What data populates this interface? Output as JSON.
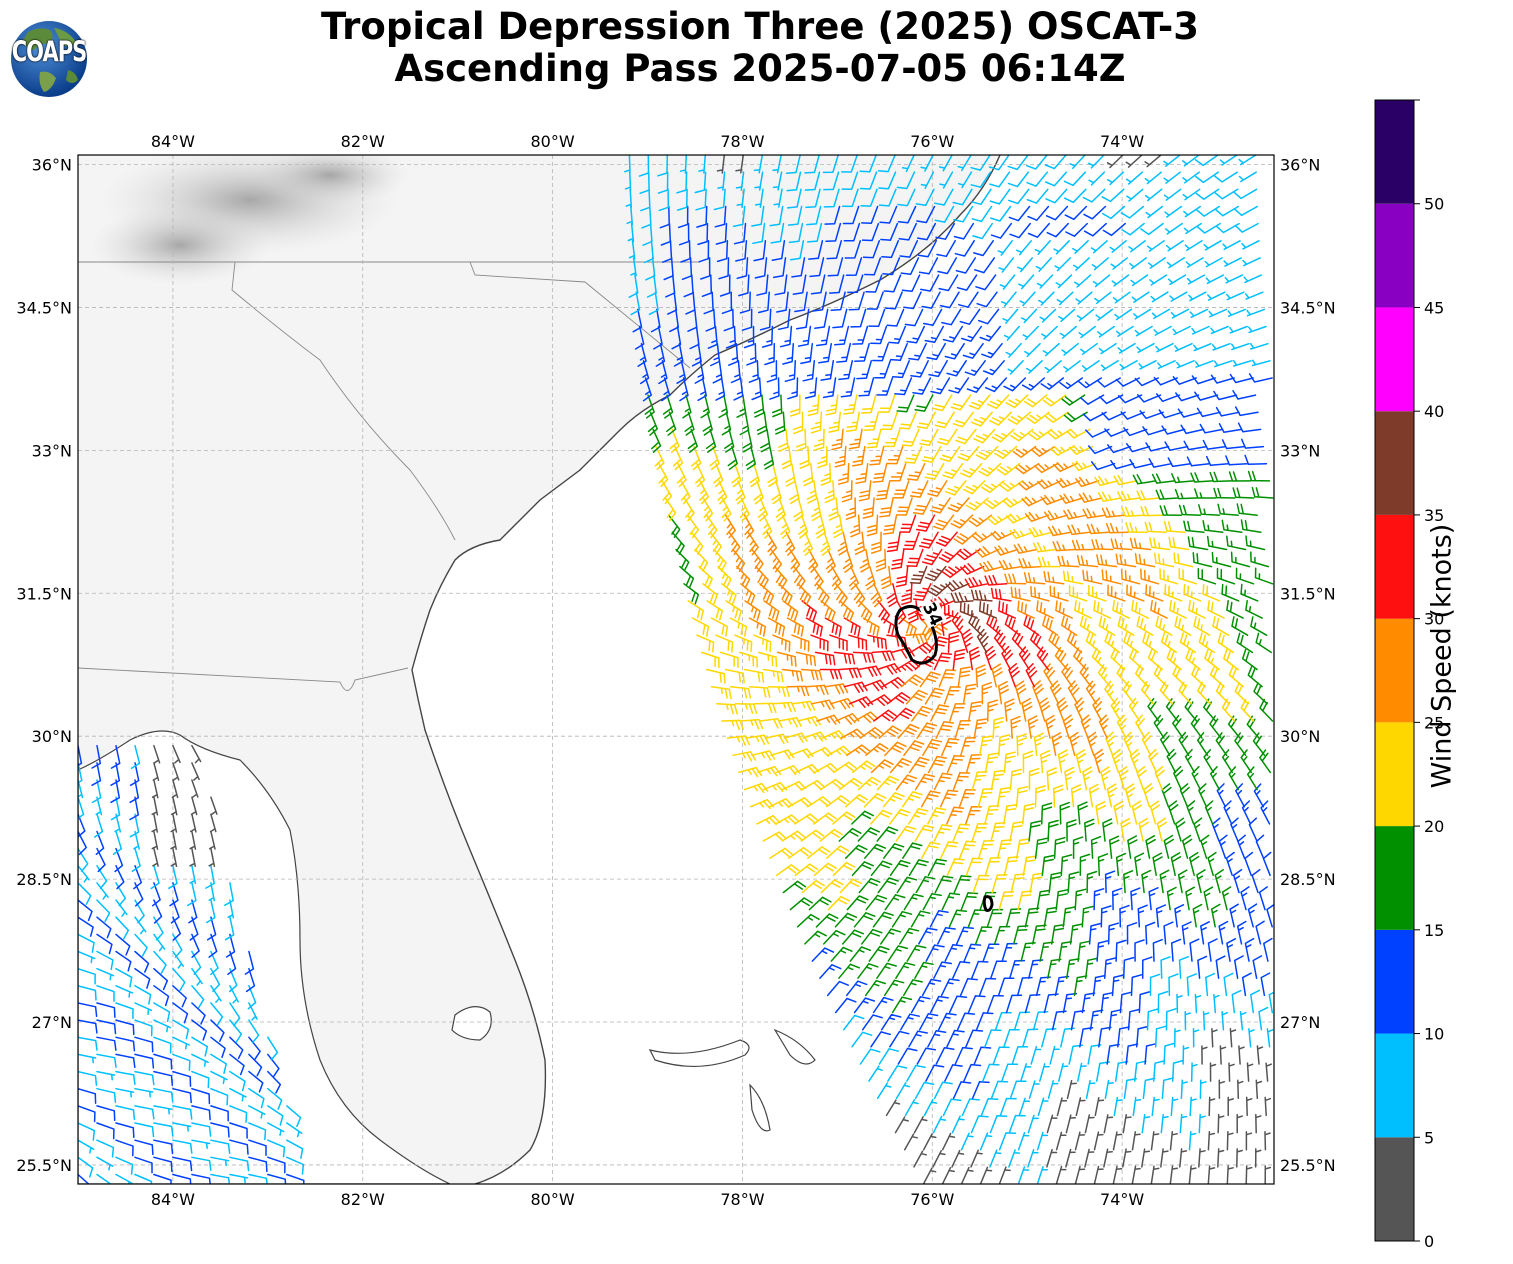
{
  "title": {
    "line1": "Tropical Depression Three (2025) OSCAT-3",
    "line2": "Ascending Pass 2025-07-05 06:14Z"
  },
  "logo": {
    "text": "COAPS",
    "icon": "globe-logo-icon"
  },
  "map": {
    "projection": "plate-carree",
    "extent": {
      "lon": [
        -85.0,
        -72.4
      ],
      "lat": [
        25.3,
        36.1
      ]
    },
    "lon_ticks": [
      -84,
      -82,
      -80,
      -78,
      -76,
      -74
    ],
    "lat_ticks": [
      25.5,
      27,
      28.5,
      30,
      31.5,
      33,
      34.5,
      36
    ],
    "lon_tick_labels": [
      "84°W",
      "82°W",
      "80°W",
      "78°W",
      "76°W",
      "74°W"
    ],
    "lat_tick_labels": [
      "25.5°N",
      "27°N",
      "28.5°N",
      "30°N",
      "31.5°N",
      "33°N",
      "34.5°N",
      "36°N"
    ],
    "gridlines": true,
    "background": "grayscale topography over land",
    "contour": {
      "label": "34",
      "units": "knots",
      "color": "#000000"
    }
  },
  "colorbar": {
    "label": "Wind Speed (knots)",
    "min": 0,
    "max": 55,
    "bounds": [
      0,
      5,
      10,
      15,
      20,
      25,
      30,
      35,
      40,
      45,
      50,
      55
    ],
    "tick_labels": [
      "0",
      "5",
      "10",
      "15",
      "20",
      "25",
      "30",
      "35",
      "40",
      "45",
      "50"
    ],
    "colors": [
      "#555555",
      "#00bfff",
      "#0040ff",
      "#009000",
      "#ffd700",
      "#ff8c00",
      "#ff1010",
      "#7f3b2a",
      "#ff00ff",
      "#8a00c2",
      "#2a0066"
    ]
  },
  "chart_data": {
    "type": "wind-barb map",
    "units": "knots",
    "storm_center_approx": {
      "lon": -76.0,
      "lat": 31.2
    },
    "swath_regions": [
      {
        "region": "main swath (Atlantic east of Florida/Georgia)",
        "speed_range_kt": [
          5,
          35
        ]
      },
      {
        "region": "gale-force area near 31.2N 76.1W",
        "speed_range_kt": [
          30,
          40
        ]
      },
      {
        "region": "secondary swath (eastern Gulf of Mexico)",
        "speed_range_kt": [
          0,
          15
        ]
      }
    ]
  }
}
